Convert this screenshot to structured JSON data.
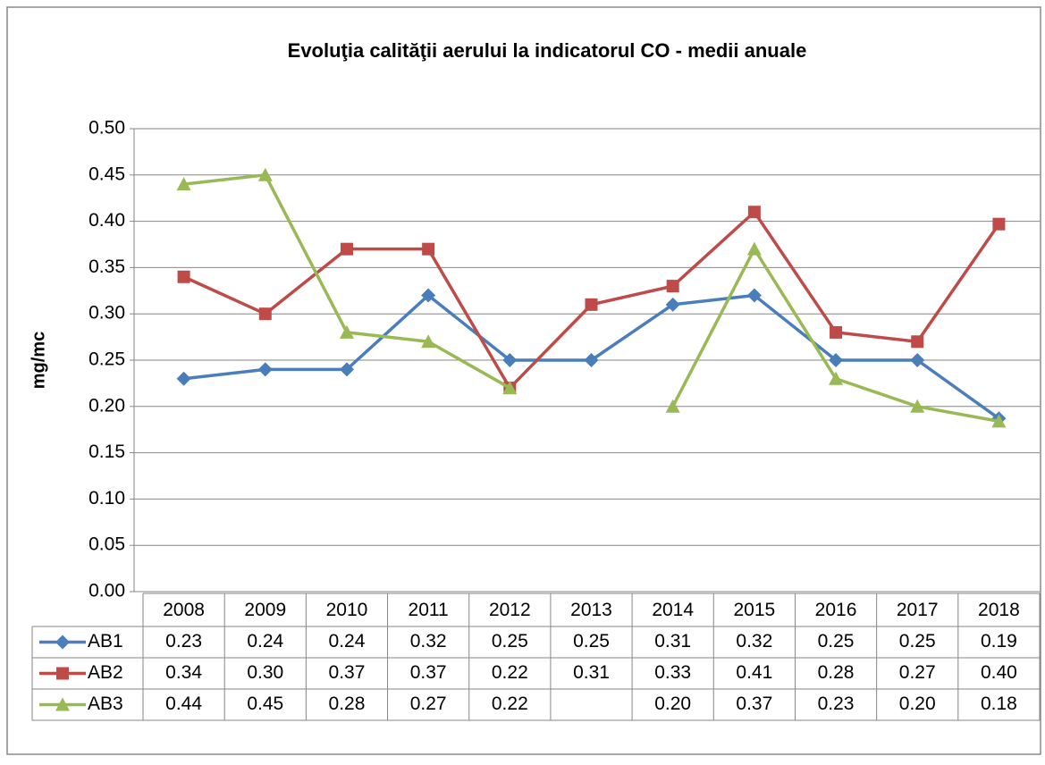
{
  "chart_data": {
    "type": "line",
    "title": "Evoluţia calităţii aerului la indicatorul CO - medii anuale",
    "y_label": "mg/mc",
    "categories": [
      "2008",
      "2009",
      "2010",
      "2011",
      "2012",
      "2013",
      "2014",
      "2015",
      "2016",
      "2017",
      "2018"
    ],
    "series": [
      {
        "name": "AB1",
        "color": "#4a7ebb",
        "marker": "diamond",
        "values": [
          0.23,
          0.24,
          0.24,
          0.32,
          0.25,
          0.25,
          0.31,
          0.32,
          0.25,
          0.25,
          0.187
        ],
        "value_labels": [
          "0.23",
          "0.24",
          "0.24",
          "0.32",
          "0.25",
          "0.25",
          "0.31",
          "0.32",
          "0.25",
          "0.25",
          "0.19"
        ]
      },
      {
        "name": "AB2",
        "color": "#be4b48",
        "marker": "square",
        "values": [
          0.34,
          0.3,
          0.37,
          0.37,
          0.22,
          0.31,
          0.33,
          0.41,
          0.28,
          0.27,
          0.397
        ],
        "value_labels": [
          "0.34",
          "0.30",
          "0.37",
          "0.37",
          "0.22",
          "0.31",
          "0.33",
          "0.41",
          "0.28",
          "0.27",
          "0.40"
        ]
      },
      {
        "name": "AB3",
        "color": "#98b954",
        "marker": "triangle",
        "values": [
          0.44,
          0.45,
          0.28,
          0.27,
          0.22,
          null,
          0.2,
          0.37,
          0.23,
          0.2,
          0.184
        ],
        "value_labels": [
          "0.44",
          "0.45",
          "0.28",
          "0.27",
          "0.22",
          null,
          "0.20",
          "0.37",
          "0.23",
          "0.20",
          "0.18"
        ]
      }
    ],
    "ylim": [
      0,
      0.5
    ],
    "yticks": [
      {
        "value": 0,
        "label": "0.00"
      },
      {
        "value": 0.05,
        "label": "0.05"
      },
      {
        "value": 0.1,
        "label": "0.10"
      },
      {
        "value": 0.15,
        "label": "0.15"
      },
      {
        "value": 0.2,
        "label": "0.20"
      },
      {
        "value": 0.25,
        "label": "0.25"
      },
      {
        "value": 0.3,
        "label": "0.30"
      },
      {
        "value": 0.35,
        "label": "0.35"
      },
      {
        "value": 0.4,
        "label": "0.40"
      },
      {
        "value": 0.45,
        "label": "0.45"
      },
      {
        "value": 0.5,
        "label": "0.50"
      }
    ],
    "grid": true,
    "data_table": true
  }
}
